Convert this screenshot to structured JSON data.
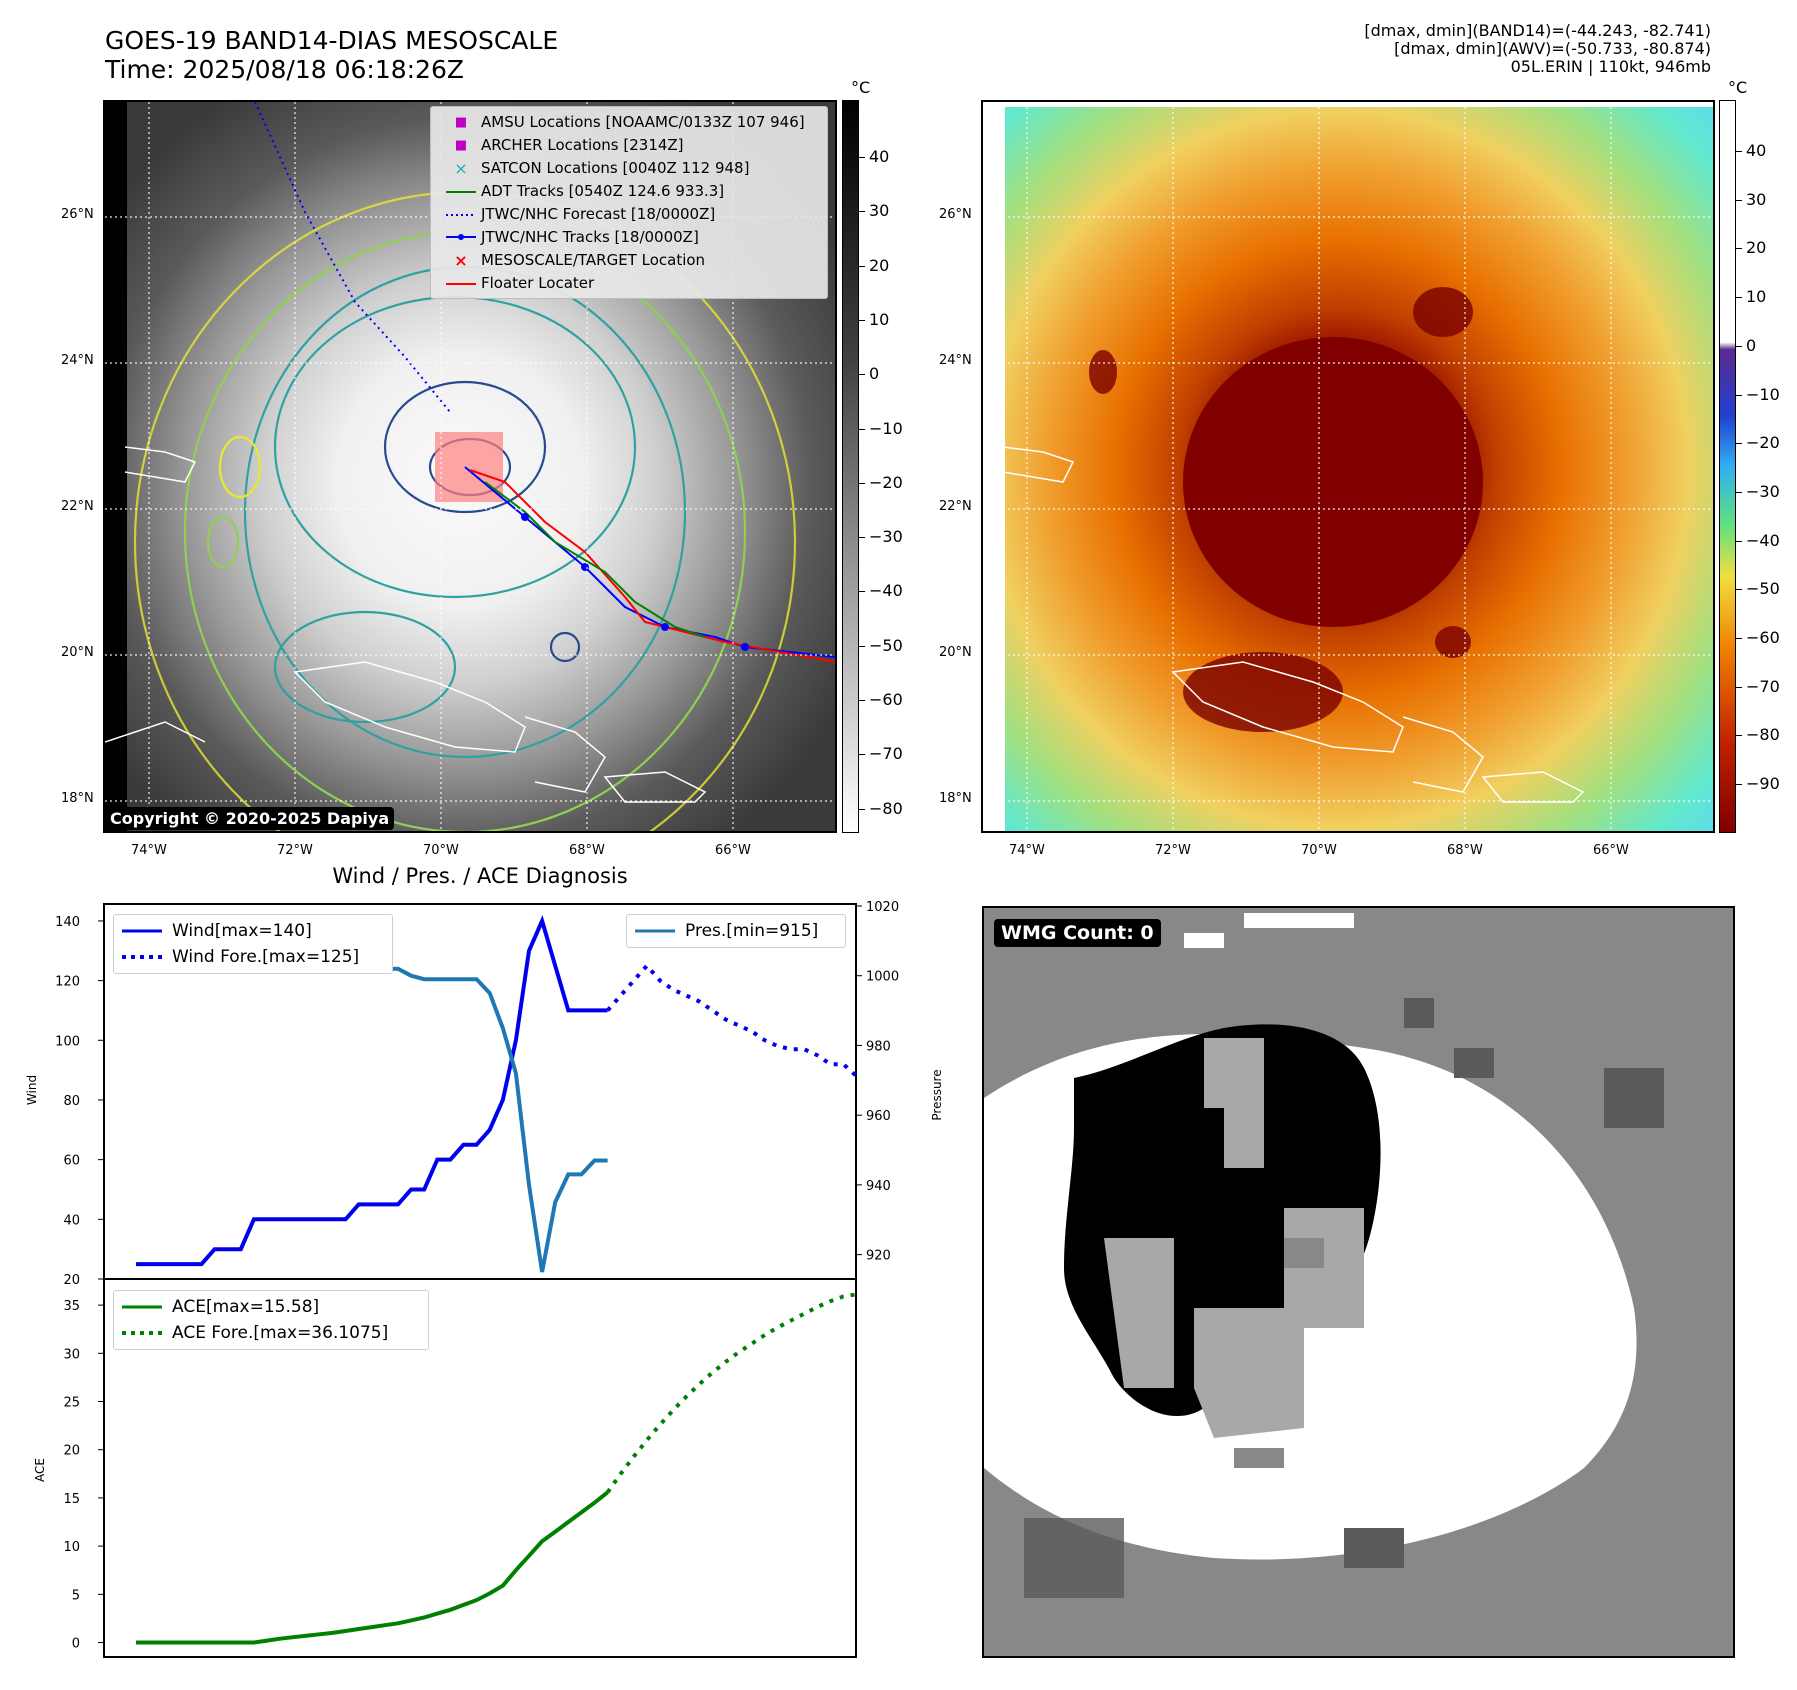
{
  "header": {
    "title_line1": "GOES-19 BAND14-DIAS MESOSCALE",
    "title_line2": "Time: 2025/08/18 06:18:26Z",
    "info_line1": "[dmax, dmin](BAND14)=(-44.243, -82.741)",
    "info_line2": "[dmax, dmin](AWV)=(-50.733, -80.874)",
    "info_line3": "05L.ERIN | 110kt, 946mb"
  },
  "map_ticks": {
    "lat_labels": [
      "26°N",
      "24°N",
      "22°N",
      "20°N",
      "18°N"
    ],
    "lon_labels": [
      "74°W",
      "72°W",
      "70°W",
      "68°W",
      "66°W"
    ]
  },
  "map_legend": [
    {
      "label": "AMSU Locations [NOAAMC/0133Z 107 946]",
      "symbol": "■",
      "color": "#c000c0"
    },
    {
      "label": "ARCHER Locations [2314Z]",
      "symbol": "■",
      "color": "#c000c0"
    },
    {
      "label": "SATCON Locations [0040Z 112 948]",
      "symbol": "×",
      "color": "#20b0b0"
    },
    {
      "label": "ADT Tracks [0540Z 124.6 933.3]",
      "symbol": "line",
      "color": "#008000"
    },
    {
      "label": "JTWC/NHC Forecast [18/0000Z]",
      "symbol": "dots",
      "color": "#0000ff"
    },
    {
      "label": "JTWC/NHC Tracks [18/0000Z]",
      "symbol": "linedot",
      "color": "#0000ff"
    },
    {
      "label": "MESOSCALE/TARGET Location",
      "symbol": "×",
      "color": "#ff0000"
    },
    {
      "label": "Floater Locater",
      "symbol": "line",
      "color": "#ff0000"
    }
  ],
  "copyright": "Copyright © 2020-2025 Dapiya",
  "colorbar_left": {
    "unit": "°C",
    "ticks": [
      "40",
      "30",
      "20",
      "10",
      "0",
      "−10",
      "−20",
      "−30",
      "−40",
      "−50",
      "−60",
      "−70",
      "−80"
    ]
  },
  "colorbar_right": {
    "unit": "°C",
    "ticks": [
      "40",
      "30",
      "20",
      "10",
      "0",
      "−10",
      "−20",
      "−30",
      "−40",
      "−50",
      "−60",
      "−70",
      "−80",
      "−90"
    ]
  },
  "wmg": {
    "label": "WMG Count: 0"
  },
  "chart_data": [
    {
      "type": "line",
      "title": "Wind / Pres. / ACE Diagnosis",
      "ylabel": "Wind",
      "ylabel_right": "Pressure",
      "ylim": [
        20,
        145
      ],
      "ylim_right": [
        913,
        1020
      ],
      "yticks": [
        20,
        40,
        60,
        80,
        100,
        120,
        140
      ],
      "yticks_right": [
        920,
        940,
        960,
        980,
        1000,
        1020
      ],
      "legend_left": [
        "Wind[max=140]",
        "Wind Fore.[max=125]"
      ],
      "legend_right": [
        "Pres.[min=915]"
      ],
      "series": [
        {
          "name": "Wind[max=140]",
          "color": "#0000ee",
          "style": "solid",
          "values": [
            25,
            25,
            25,
            25,
            25,
            25,
            30,
            30,
            30,
            40,
            40,
            40,
            40,
            40,
            40,
            40,
            40,
            45,
            45,
            45,
            45,
            50,
            50,
            60,
            60,
            65,
            65,
            70,
            80,
            100,
            130,
            140,
            125,
            110,
            110,
            110,
            110
          ]
        },
        {
          "name": "Wind Fore.[max=125]",
          "color": "#0000ee",
          "style": "dotted",
          "offset": 36,
          "values": [
            110,
            115,
            120,
            125,
            120,
            117,
            115,
            113,
            110,
            107,
            105,
            103,
            100,
            98,
            97,
            97,
            95,
            92,
            92,
            88
          ]
        },
        {
          "name": "Pres.[min=915]",
          "color": "#1f77b4",
          "style": "solid",
          "axis": "right",
          "values": [
            1010,
            1010,
            1009,
            1006,
            1005,
            1005,
            1004,
            1004,
            1004,
            1004,
            1004,
            1004,
            1004,
            1003,
            1003,
            1003,
            1003,
            1003,
            1002,
            1002,
            1002,
            1000,
            999,
            999,
            999,
            999,
            999,
            995,
            985,
            972,
            940,
            915,
            935,
            943,
            943,
            947,
            947
          ]
        }
      ]
    },
    {
      "type": "line",
      "ylabel": "ACE",
      "ylim": [
        -1.5,
        37.5
      ],
      "yticks": [
        0,
        5,
        10,
        15,
        20,
        25,
        30,
        35
      ],
      "series": [
        {
          "name": "ACE[max=15.58]",
          "color": "#008000",
          "style": "solid",
          "values": [
            0,
            0,
            0,
            0,
            0,
            0,
            0,
            0,
            0,
            0,
            0.2,
            0.4,
            0.55,
            0.7,
            0.85,
            1.0,
            1.2,
            1.4,
            1.6,
            1.8,
            2.0,
            2.3,
            2.6,
            3.0,
            3.4,
            3.9,
            4.4,
            5.1,
            5.9,
            7.5,
            9.0,
            10.5,
            11.5,
            12.5,
            13.5,
            14.5,
            15.58
          ]
        },
        {
          "name": "ACE Fore.[max=36.1075]",
          "color": "#008000",
          "style": "dotted",
          "offset": 36,
          "values": [
            15.58,
            17.5,
            19.3,
            21.0,
            22.6,
            24.1,
            25.5,
            26.8,
            28.0,
            29.1,
            30.1,
            31.0,
            31.9,
            32.7,
            33.4,
            34.1,
            34.8,
            35.4,
            35.9,
            36.1075
          ]
        }
      ]
    }
  ]
}
